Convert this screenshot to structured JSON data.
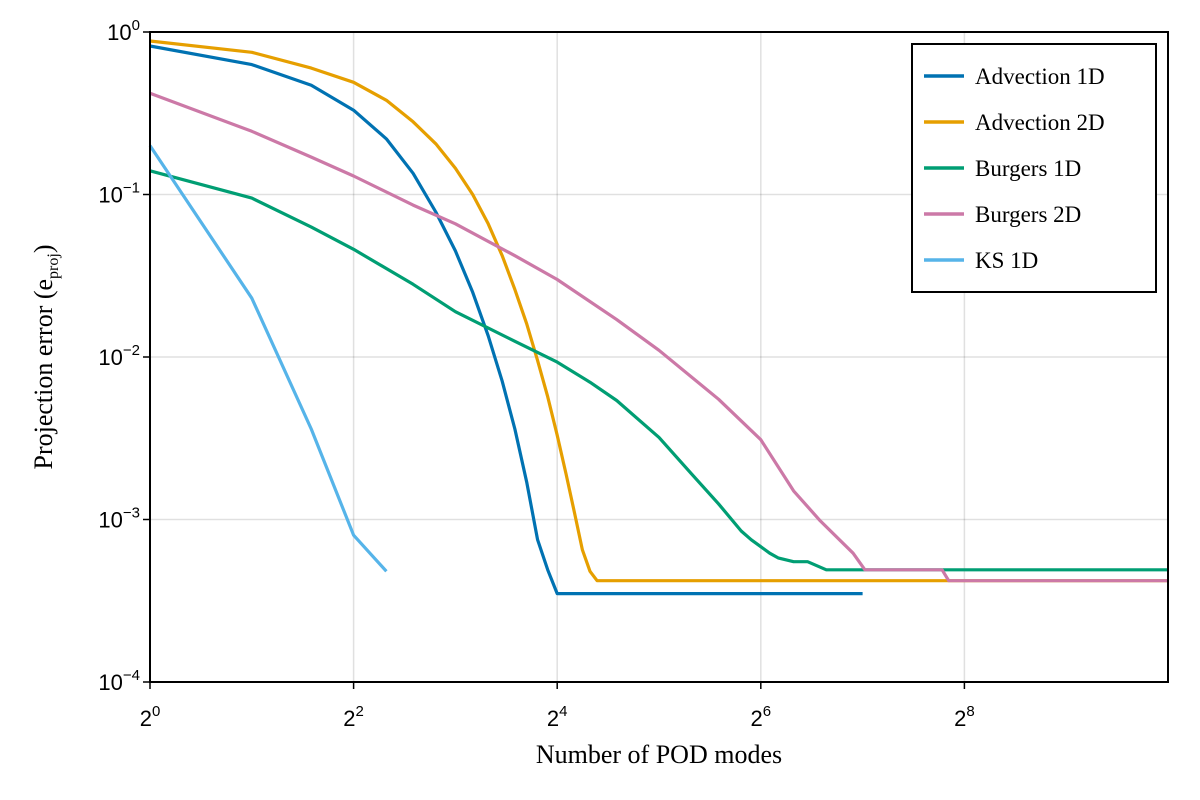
{
  "chart_data": {
    "type": "line",
    "xlabel": "Number of POD modes",
    "ylabel": "Projection error (e",
    "ylabel_sub": "proj",
    "ylabel_close": ")",
    "x_scale": "log2",
    "y_scale": "log10",
    "xlim": [
      1,
      1024
    ],
    "ylim": [
      0.0001,
      1
    ],
    "x_ticks": [
      {
        "value": 1,
        "base": "2",
        "exp": "0"
      },
      {
        "value": 4,
        "base": "2",
        "exp": "2"
      },
      {
        "value": 16,
        "base": "2",
        "exp": "4"
      },
      {
        "value": 64,
        "base": "2",
        "exp": "6"
      },
      {
        "value": 256,
        "base": "2",
        "exp": "8"
      }
    ],
    "y_ticks": [
      {
        "value": 0.0001,
        "base": "10",
        "exp": "−4"
      },
      {
        "value": 0.001,
        "base": "10",
        "exp": "−3"
      },
      {
        "value": 0.01,
        "base": "10",
        "exp": "−2"
      },
      {
        "value": 0.1,
        "base": "10",
        "exp": "−1"
      },
      {
        "value": 1,
        "base": "10",
        "exp": "0"
      }
    ],
    "grid": true,
    "legend_position": "top-right",
    "series": [
      {
        "name": "Advection 1D",
        "color": "#0072b2",
        "x": [
          1,
          2,
          3,
          4,
          5,
          6,
          7,
          8,
          9,
          10,
          11,
          12,
          13,
          14,
          15,
          16,
          128
        ],
        "y": [
          0.82,
          0.63,
          0.47,
          0.33,
          0.22,
          0.135,
          0.078,
          0.045,
          0.025,
          0.0135,
          0.0071,
          0.0036,
          0.0017,
          0.00075,
          0.00049,
          0.00035,
          0.00035
        ]
      },
      {
        "name": "Advection 2D",
        "color": "#e69f00",
        "x": [
          1,
          2,
          3,
          4,
          5,
          6,
          7,
          8,
          9,
          10,
          11,
          12,
          13,
          14,
          15,
          16,
          17,
          18,
          19,
          20,
          21,
          22,
          23,
          216,
          217,
          1024
        ],
        "y": [
          0.88,
          0.75,
          0.6,
          0.49,
          0.38,
          0.28,
          0.205,
          0.145,
          0.1,
          0.066,
          0.042,
          0.026,
          0.016,
          0.0095,
          0.0057,
          0.0033,
          0.0019,
          0.0011,
          0.00065,
          0.00048,
          0.00042,
          0.00042,
          0.00042,
          0.00042,
          0.00042,
          0.00042
        ]
      },
      {
        "name": "Burgers 1D",
        "color": "#009e73",
        "x": [
          1,
          2,
          3,
          4,
          6,
          8,
          12,
          16,
          20,
          24,
          32,
          40,
          48,
          56,
          60,
          64,
          68,
          72,
          80,
          88,
          100,
          1024
        ],
        "y": [
          0.14,
          0.095,
          0.063,
          0.046,
          0.028,
          0.019,
          0.0125,
          0.0093,
          0.007,
          0.0054,
          0.0032,
          0.0019,
          0.00125,
          0.00085,
          0.00075,
          0.00068,
          0.00062,
          0.00058,
          0.00055,
          0.00055,
          0.00049,
          0.00049
        ]
      },
      {
        "name": "Burgers 2D",
        "color": "#cc79a7",
        "x": [
          1,
          2,
          3,
          4,
          6,
          8,
          12,
          16,
          24,
          32,
          48,
          64,
          80,
          96,
          120,
          130,
          220,
          230,
          1024
        ],
        "y": [
          0.42,
          0.245,
          0.17,
          0.13,
          0.086,
          0.066,
          0.042,
          0.03,
          0.017,
          0.011,
          0.0055,
          0.0031,
          0.0015,
          0.00098,
          0.00062,
          0.00049,
          0.00049,
          0.00042,
          0.00042
        ]
      },
      {
        "name": "KS 1D",
        "color": "#56b4e9",
        "x": [
          1,
          2,
          3,
          4,
          5
        ],
        "y": [
          0.2,
          0.023,
          0.0036,
          0.0008,
          0.00048
        ]
      }
    ]
  }
}
